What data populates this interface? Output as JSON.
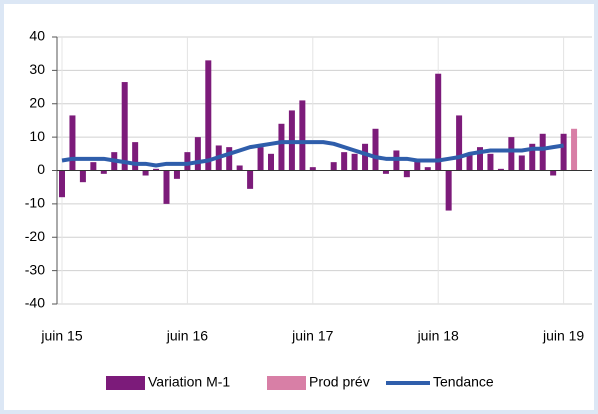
{
  "chart_data": {
    "type": "bar",
    "categories": [
      "juin 15",
      null,
      null,
      null,
      null,
      null,
      null,
      null,
      null,
      null,
      null,
      null,
      "juin 16",
      null,
      null,
      null,
      null,
      null,
      null,
      null,
      null,
      null,
      null,
      null,
      "juin 17",
      null,
      null,
      null,
      null,
      null,
      null,
      null,
      null,
      null,
      null,
      null,
      "juin 18",
      null,
      null,
      null,
      null,
      null,
      null,
      null,
      null,
      null,
      null,
      null,
      "juin 19",
      null
    ],
    "series": [
      {
        "name": "Variation M-1",
        "color": "#7c1b7a",
        "values": [
          -8,
          16.5,
          -3.5,
          2.5,
          -1,
          5.5,
          26.5,
          8.5,
          -1.5,
          0.5,
          -10,
          -2.5,
          5.5,
          10,
          33,
          7.5,
          7,
          1.5,
          -5.5,
          7,
          5,
          14,
          18,
          21,
          1,
          0,
          2.5,
          5.5,
          5,
          8,
          12.5,
          -1,
          6,
          -2,
          3,
          1,
          29,
          -12,
          16.5,
          5,
          7,
          5,
          0.5,
          10,
          4.5,
          8,
          11,
          -1.5,
          11,
          null
        ]
      },
      {
        "name": "Prod prév",
        "color": "#d87fa6",
        "values": [
          null,
          null,
          null,
          null,
          null,
          null,
          null,
          null,
          null,
          null,
          null,
          null,
          null,
          null,
          null,
          null,
          null,
          null,
          null,
          null,
          null,
          null,
          null,
          null,
          null,
          null,
          null,
          null,
          null,
          null,
          null,
          null,
          null,
          null,
          null,
          null,
          null,
          null,
          null,
          null,
          null,
          null,
          null,
          null,
          null,
          null,
          null,
          null,
          null,
          12.5
        ]
      },
      {
        "name": "Tendance",
        "color": "#2f5eab",
        "type": "line",
        "values": [
          3,
          3.5,
          3.5,
          3.5,
          3.5,
          3,
          2.5,
          2,
          2,
          1.5,
          2,
          2,
          2,
          2.5,
          3,
          4,
          5,
          6,
          7,
          7.5,
          8,
          8.5,
          8.5,
          8.5,
          8.5,
          8.5,
          8,
          7,
          6,
          5,
          4,
          3.5,
          3.5,
          3.5,
          3,
          3,
          3,
          3.5,
          4,
          5,
          5.5,
          6,
          6,
          6,
          6,
          6.5,
          6.5,
          7,
          7.5,
          null
        ]
      }
    ],
    "ylim": [
      -40,
      40
    ],
    "yticks": [
      -40,
      -30,
      -20,
      -10,
      0,
      10,
      20,
      30,
      40
    ],
    "grid": true,
    "legend": "bottom"
  }
}
